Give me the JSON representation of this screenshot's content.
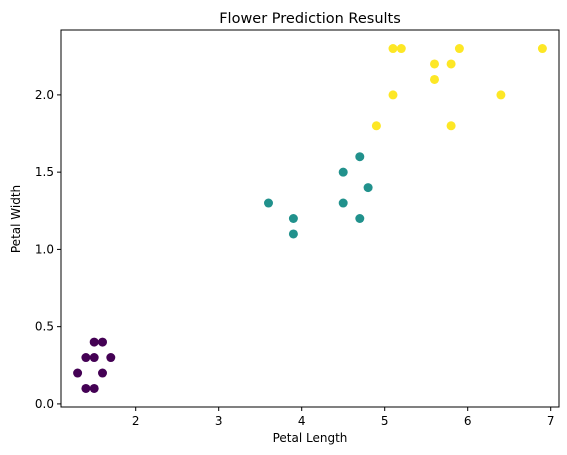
{
  "chart_data": {
    "type": "scatter",
    "title": "Flower Prediction Results",
    "xlabel": "Petal Length",
    "ylabel": "Petal Width",
    "xlim": [
      1.1,
      7.1
    ],
    "ylim": [
      -0.02,
      2.42
    ],
    "xticks": [
      2,
      3,
      4,
      5,
      6,
      7
    ],
    "yticks": [
      0.0,
      0.5,
      1.0,
      1.5,
      2.0
    ],
    "ytick_labels": [
      "0.0",
      "0.5",
      "1.0",
      "1.5",
      "2.0"
    ],
    "grid": false,
    "legend": "none",
    "series": [
      {
        "color": "#440154",
        "points": [
          [
            1.3,
            0.2
          ],
          [
            1.4,
            0.3
          ],
          [
            1.4,
            0.1
          ],
          [
            1.5,
            0.4
          ],
          [
            1.5,
            0.3
          ],
          [
            1.5,
            0.1
          ],
          [
            1.6,
            0.4
          ],
          [
            1.6,
            0.2
          ],
          [
            1.7,
            0.3
          ]
        ]
      },
      {
        "color": "#21918c",
        "points": [
          [
            3.6,
            1.3
          ],
          [
            3.9,
            1.2
          ],
          [
            3.9,
            1.1
          ],
          [
            4.5,
            1.5
          ],
          [
            4.5,
            1.3
          ],
          [
            4.7,
            1.6
          ],
          [
            4.7,
            1.2
          ],
          [
            4.8,
            1.4
          ]
        ]
      },
      {
        "color": "#fde725",
        "points": [
          [
            4.9,
            1.8
          ],
          [
            5.1,
            2.3
          ],
          [
            5.1,
            2.0
          ],
          [
            5.2,
            2.3
          ],
          [
            5.6,
            2.2
          ],
          [
            5.6,
            2.1
          ],
          [
            5.8,
            2.2
          ],
          [
            5.8,
            1.8
          ],
          [
            5.9,
            2.3
          ],
          [
            6.4,
            2.0
          ],
          [
            6.9,
            2.3
          ]
        ]
      }
    ]
  }
}
